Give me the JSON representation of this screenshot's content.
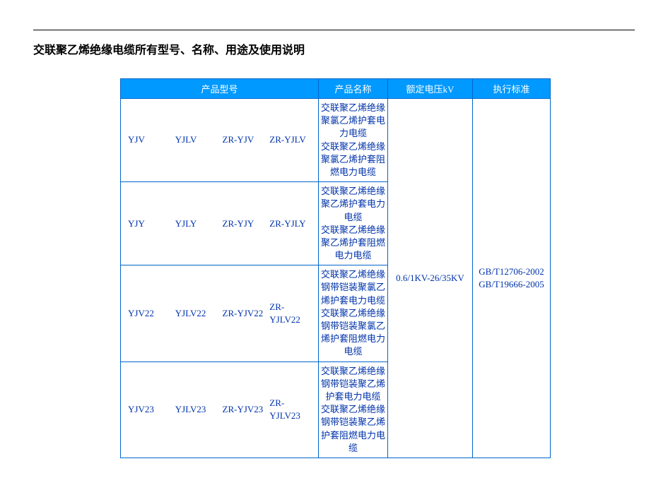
{
  "title": "交联聚乙烯绝缘电缆所有型号、名称、用途及使用说明",
  "table": {
    "headers": {
      "model": "产品型号",
      "name": "产品名称",
      "voltage": "额定电压kV",
      "standard": "执行标准"
    },
    "rows": [
      {
        "models": [
          "YJV",
          "YJLV",
          "ZR-YJV",
          "ZR-YJLV"
        ],
        "name": "交联聚乙烯绝缘聚氯乙烯护套电力电缆\n交联聚乙烯绝缘聚氯乙烯护套阻燃电力电缆"
      },
      {
        "models": [
          "YJY",
          "YJLY",
          "ZR-YJY",
          "ZR-YJLY"
        ],
        "name": "交联聚乙烯绝缘聚乙烯护套电力电缆\n交联聚乙烯绝缘聚乙烯护套阻燃电力电缆"
      },
      {
        "models": [
          "YJV22",
          "YJLV22",
          "ZR-YJV22",
          "ZR-YJLV22"
        ],
        "name": "交联聚乙烯绝缘钢带铠装聚氯乙烯护套电力电缆\n交联聚乙烯绝缘钢带铠装聚氯乙烯护套阻燃电力电缆"
      },
      {
        "models": [
          "YJV23",
          "YJLV23",
          "ZR-YJV23",
          "ZR-YJLV23"
        ],
        "name": "交联聚乙烯绝缘钢带铠装聚乙烯护套电力电缆\n交联聚乙烯绝缘钢带铠装聚乙烯护套阻燃电力电缆"
      }
    ],
    "voltage": "0.6/1KV-26/35KV",
    "standards": "GB/T12706-2002\nGB/T19666-2005",
    "colors": {
      "header_bg": "#0099ff",
      "header_text": "#ffffff",
      "border": "#0066cc",
      "cell_text": "#0033aa",
      "background": "#ffffff"
    },
    "font_size": 13,
    "title_font_size": 16
  }
}
